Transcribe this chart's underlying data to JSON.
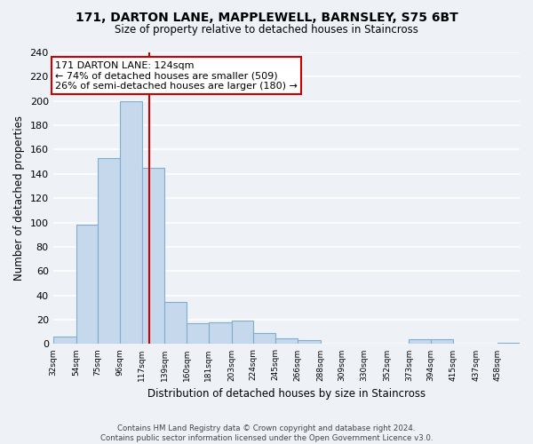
{
  "title": "171, DARTON LANE, MAPPLEWELL, BARNSLEY, S75 6BT",
  "subtitle": "Size of property relative to detached houses in Staincross",
  "xlabel": "Distribution of detached houses by size in Staincross",
  "ylabel": "Number of detached properties",
  "bin_labels": [
    "32sqm",
    "54sqm",
    "75sqm",
    "96sqm",
    "117sqm",
    "139sqm",
    "160sqm",
    "181sqm",
    "203sqm",
    "224sqm",
    "245sqm",
    "266sqm",
    "288sqm",
    "309sqm",
    "330sqm",
    "352sqm",
    "373sqm",
    "394sqm",
    "415sqm",
    "437sqm",
    "458sqm"
  ],
  "bin_edges": [
    32,
    54,
    75,
    96,
    117,
    139,
    160,
    181,
    203,
    224,
    245,
    266,
    288,
    309,
    330,
    352,
    373,
    394,
    415,
    437,
    458,
    479
  ],
  "bar_heights": [
    6,
    98,
    153,
    200,
    145,
    35,
    17,
    18,
    19,
    9,
    5,
    3,
    0,
    0,
    0,
    0,
    4,
    4,
    0,
    0,
    1
  ],
  "bar_color": "#c5d8ec",
  "bar_edge_color": "#7faecf",
  "property_size": 124,
  "vline_color": "#cc0000",
  "annotation_text": "171 DARTON LANE: 124sqm\n← 74% of detached houses are smaller (509)\n26% of semi-detached houses are larger (180) →",
  "annotation_box_color": "#ffffff",
  "annotation_box_edge_color": "#cc0000",
  "ylim": [
    0,
    240
  ],
  "yticks": [
    0,
    20,
    40,
    60,
    80,
    100,
    120,
    140,
    160,
    180,
    200,
    220,
    240
  ],
  "footer_line1": "Contains HM Land Registry data © Crown copyright and database right 2024.",
  "footer_line2": "Contains public sector information licensed under the Open Government Licence v3.0.",
  "background_color": "#eef2f7",
  "plot_bg_color": "#eef2f7",
  "grid_color": "#ffffff"
}
